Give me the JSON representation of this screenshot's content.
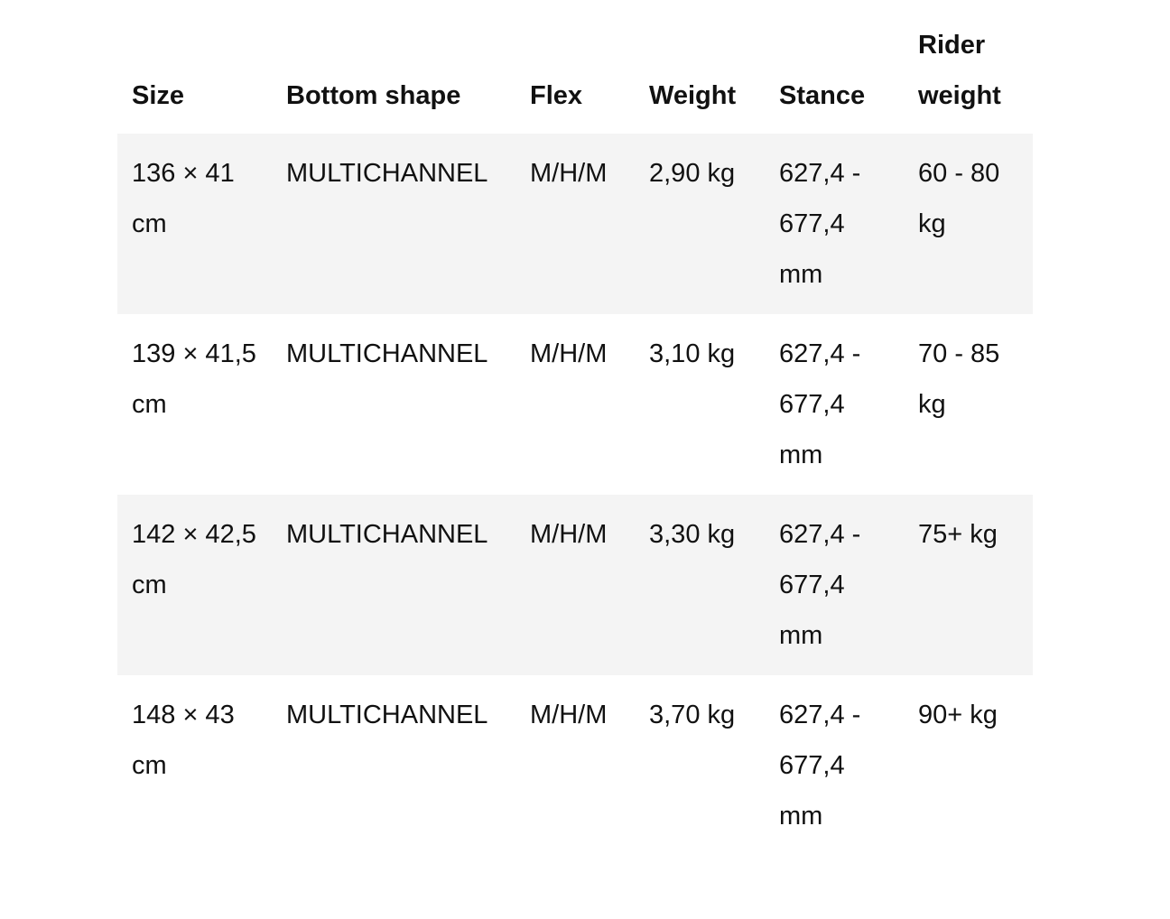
{
  "table": {
    "headers": [
      "Size",
      "Bottom shape",
      "Flex",
      "Weight",
      "Stance",
      "Rider weight"
    ],
    "rows": [
      [
        "136 × 41 cm",
        "MULTICHANNEL",
        "M/H/M",
        "2,90 kg",
        "627,4 - 677,4 mm",
        "60 - 80 kg"
      ],
      [
        "139 × 41,5 cm",
        "MULTICHANNEL",
        "M/H/M",
        "3,10 kg",
        "627,4 - 677,4 mm",
        "70 - 85 kg"
      ],
      [
        "142 × 42,5 cm",
        "MULTICHANNEL",
        "M/H/M",
        "3,30 kg",
        "627,4 - 677,4 mm",
        "75+ kg"
      ],
      [
        "148 × 43 cm",
        "MULTICHANNEL",
        "M/H/M",
        "3,70 kg",
        "627,4 - 677,4 mm",
        "90+ kg"
      ]
    ],
    "stripe_color": "#f4f4f4"
  }
}
